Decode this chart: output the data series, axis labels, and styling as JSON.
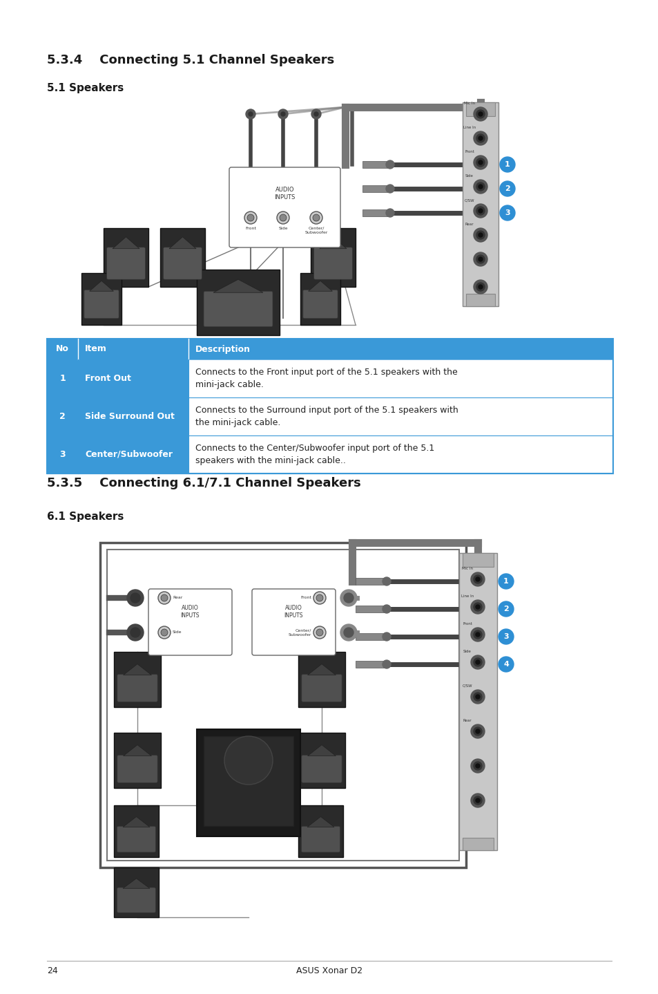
{
  "title534": "5.3.4    Connecting 5.1 Channel Speakers",
  "subtitle51": "5.1 Speakers",
  "title535": "5.3.5    Connecting 6.1/7.1 Channel Speakers",
  "subtitle61": "6.1 Speakers",
  "header_color": "#3a99d8",
  "header_text_color": "#FFFFFF",
  "cell_blue_color": "#3a99d8",
  "table_border_color": "#3a99d8",
  "page_bg": "#FFFFFF",
  "page_number": "24",
  "page_footer": "ASUS Xonar D2",
  "table1_headers": [
    "No",
    "Item",
    "Description"
  ],
  "table1_rows": [
    [
      "1",
      "Front Out",
      "Connects to the Front input port of the 5.1 speakers with the\nmini-jack cable."
    ],
    [
      "2",
      "Side Surround Out",
      "Connects to the Surround input port of the 5.1 speakers with\nthe mini-jack cable."
    ],
    [
      "3",
      "Center/Subwoofer",
      "Connects to the Center/Subwoofer input port of the 5.1\nspeakers with the mini-jack cable.."
    ]
  ],
  "title_fontsize": 13,
  "subtitle_fontsize": 11,
  "body_fontsize": 9,
  "header_fontsize": 9,
  "badge_color": "#2e8fd4"
}
